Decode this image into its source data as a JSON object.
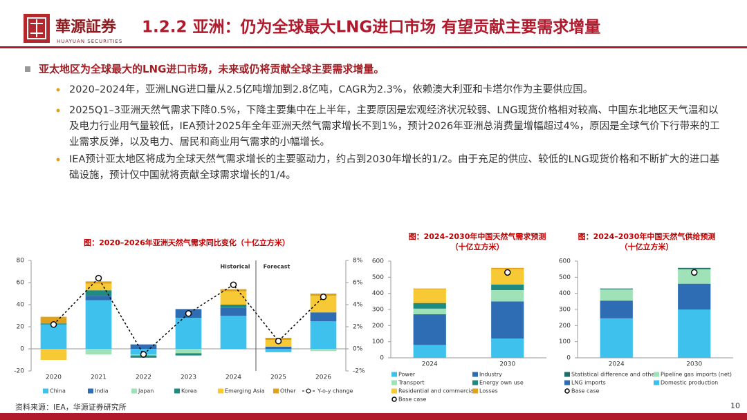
{
  "header": {
    "logo_cn": "華源証券",
    "logo_en": "HUAYUAN SECURITIES",
    "title": "1.2.2 亚洲：仍为全球最大LNG进口市场 有望贡献主要需求增量"
  },
  "bullets": {
    "heading": "亚太地区为全球最大的LNG进口市场，未来或仍将贡献全球主要需求增量。",
    "items": [
      "2020–2024年，亚洲LNG进口量从2.5亿吨增加到2.8亿吨，CAGR为2.3%，依赖澳大利亚和卡塔尔作为主要供应国。",
      "2025Q1–3亚洲天然气需求下降0.5%，下降主要集中在上半年，主要原因是宏观经济状况较弱、LNG现货价格相对较高、中国东北地区天气温和以及电力行业用气量较低，IEA预计2025年全年亚洲天然气需求增长不到1%，预计2026年亚洲总消费量增幅超过4%，原因是全球气价下行带来的工业需求反弹，以及电力、居民和商业用气需求的小幅增长。",
      "IEA预计亚太地区将成为全球天然气需求增长的主要驱动力，约占到2030年增长的1/2。由于充足的供应、较低的LNG现货价格和不断扩大的进口基础设施，预计仅中国就将贡献全球需求增长的1/4。"
    ]
  },
  "chart_data": [
    {
      "type": "bar",
      "title": "图：2020–2026年亚洲天然气需求同比变化（十亿立方米）",
      "categories": [
        "2020",
        "2021",
        "2022",
        "2023",
        "2024",
        "2025",
        "2026"
      ],
      "annotations": [
        "Historical",
        "Forecast"
      ],
      "ylim": [
        -20,
        80
      ],
      "yticks": [
        -20,
        0,
        20,
        40,
        60,
        80
      ],
      "y2lim": [
        -2,
        8
      ],
      "y2ticks": [
        {
          "value": -2,
          "label": "-2%"
        },
        {
          "value": 0,
          "label": "0%"
        },
        {
          "value": 2,
          "label": "2%"
        },
        {
          "value": 4,
          "label": "4%"
        },
        {
          "value": 6,
          "label": "6%"
        },
        {
          "value": 8,
          "label": "8%"
        }
      ],
      "series": [
        {
          "name": "China",
          "color": "#3ec1ec",
          "values": [
            22,
            44,
            -5,
            28,
            30,
            -3,
            25
          ]
        },
        {
          "name": "India",
          "color": "#2e6db4",
          "values": [
            0,
            4,
            4,
            8,
            7,
            2,
            8
          ]
        },
        {
          "name": "Japan",
          "color": "#9fe2b8",
          "values": [
            0,
            -5,
            -1,
            -4,
            0,
            0,
            -2
          ]
        },
        {
          "name": "Korea",
          "color": "#1f8a80",
          "values": [
            1,
            5,
            -2,
            -2,
            3,
            0,
            0
          ]
        },
        {
          "name": "Emerging Asia",
          "color": "#f6c935",
          "values": [
            -10,
            6,
            0,
            0,
            12,
            6,
            15
          ]
        },
        {
          "name": "Other",
          "color": "#e0a21d",
          "values": [
            6,
            2,
            0,
            0,
            2,
            2,
            2
          ]
        },
        {
          "name": "Y-o-y change",
          "color": "#000000",
          "type": "line",
          "axis": "y2",
          "values": [
            2.2,
            6.4,
            -0.5,
            3.2,
            5.8,
            0.7,
            4.7
          ]
        }
      ]
    },
    {
      "type": "bar",
      "title": "图：2024–2030年中国天然气需求预测",
      "subtitle": "（十亿立方米）",
      "categories": [
        "2024",
        "2030"
      ],
      "ylim": [
        0,
        600
      ],
      "yticks": [
        0,
        100,
        200,
        300,
        400,
        500,
        600
      ],
      "series": [
        {
          "name": "Power",
          "color": "#3ec1ec",
          "values": [
            80,
            120
          ]
        },
        {
          "name": "Industry",
          "color": "#2e6db4",
          "values": [
            190,
            230
          ]
        },
        {
          "name": "Transport",
          "color": "#9fe2b8",
          "values": [
            35,
            70
          ]
        },
        {
          "name": "Energy own use",
          "color": "#1f8a80",
          "values": [
            35,
            35
          ]
        },
        {
          "name": "Residential and commercial",
          "color": "#f6c935",
          "values": [
            85,
            95
          ]
        },
        {
          "name": "Losses",
          "color": "#e0a21d",
          "values": [
            5,
            8
          ]
        },
        {
          "name": "Base case",
          "color": "#000000",
          "type": "marker",
          "values": [
            null,
            530
          ]
        }
      ]
    },
    {
      "type": "bar",
      "title": "图：2024–2030年中国天然气供给预测",
      "subtitle": "（十亿立方米）",
      "categories": [
        "2024",
        "2030"
      ],
      "ylim": [
        0,
        600
      ],
      "yticks": [
        0,
        100,
        200,
        300,
        400,
        500,
        600
      ],
      "series": [
        {
          "name": "Statistical difference and other",
          "color": "#1f6e68",
          "values": [
            5,
            8
          ]
        },
        {
          "name": "Pipeline gas imports (net)",
          "color": "#9fe2b8",
          "values": [
            70,
            90
          ]
        },
        {
          "name": "LNG imports",
          "color": "#2e6db4",
          "values": [
            110,
            160
          ]
        },
        {
          "name": "Domestic production",
          "color": "#3ec1ec",
          "values": [
            245,
            300
          ]
        },
        {
          "name": "Base case",
          "color": "#000000",
          "type": "marker",
          "values": [
            null,
            530
          ]
        }
      ]
    }
  ],
  "footer": {
    "source": "资料来源：IEA，华源证券研究所",
    "page": "10"
  }
}
